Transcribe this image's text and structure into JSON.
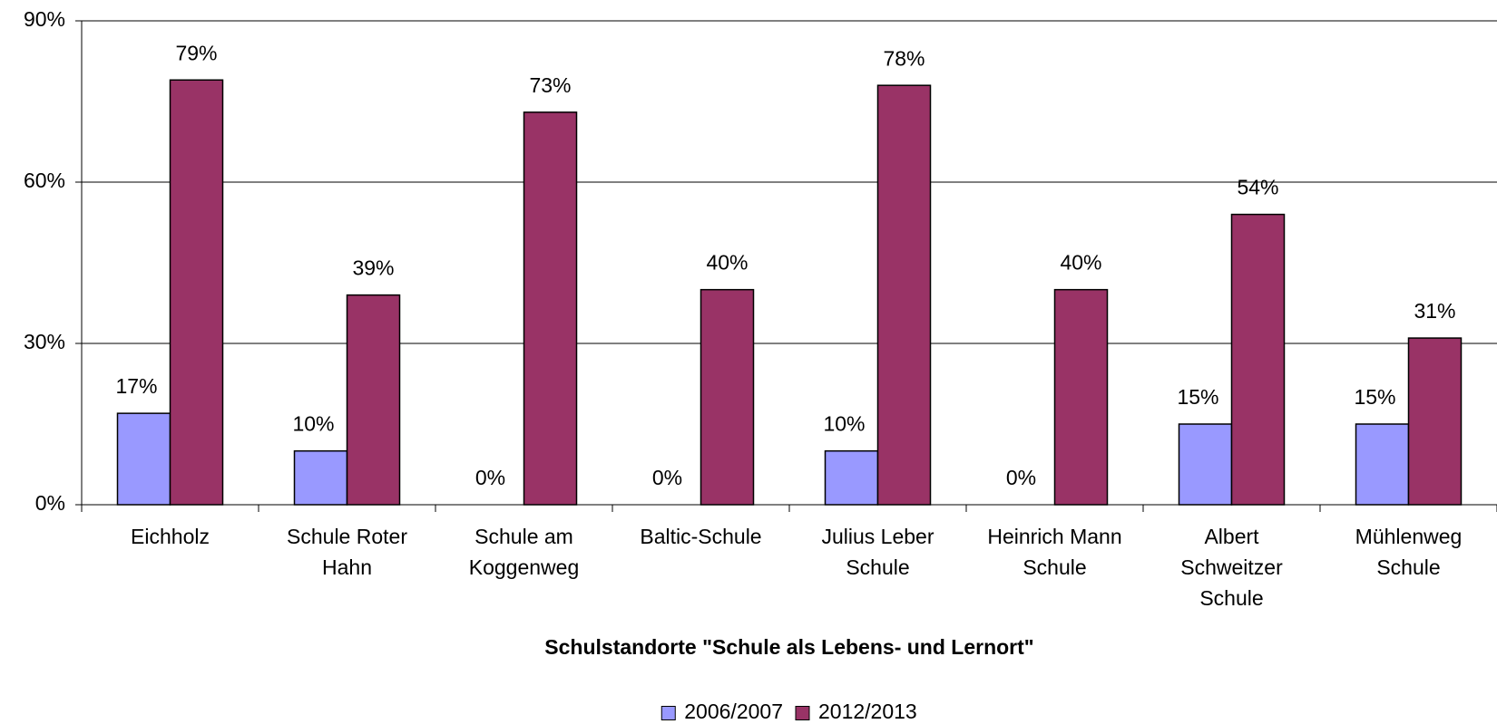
{
  "chart_data": {
    "type": "bar",
    "xlabel": "Schulstandorte \"Schule als Lebens- und Lernort\"",
    "categories": [
      "Eichholz",
      "Schule Roter Hahn",
      "Schule am Koggenweg",
      "Baltic-Schule",
      "Julius Leber Schule",
      "Heinrich Mann Schule",
      "Albert Schweitzer Schule",
      "Mühlenweg Schule"
    ],
    "series": [
      {
        "name": "2006/2007",
        "color": "#9999ff",
        "values": [
          17,
          10,
          0,
          0,
          10,
          0,
          15,
          15
        ],
        "value_labels": [
          "17%",
          "10%",
          "0%",
          "0%",
          "10%",
          "0%",
          "15%",
          "15%"
        ]
      },
      {
        "name": "2012/2013",
        "color": "#993366",
        "values": [
          79,
          39,
          73,
          40,
          78,
          40,
          54,
          31
        ],
        "value_labels": [
          "79%",
          "39%",
          "73%",
          "40%",
          "78%",
          "40%",
          "54%",
          "31%"
        ]
      }
    ],
    "ylim": [
      0,
      90
    ],
    "yticks": [
      {
        "value": 0,
        "label": "0%"
      },
      {
        "value": 30,
        "label": "30%"
      },
      {
        "value": 60,
        "label": "60%"
      },
      {
        "value": 90,
        "label": "90%"
      }
    ],
    "grid": true,
    "legend": "bottom"
  }
}
